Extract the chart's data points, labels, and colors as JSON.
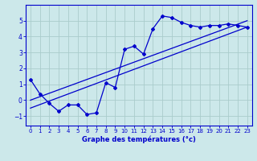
{
  "xlabel": "Graphe des températures (°c)",
  "bg_color": "#cce8ea",
  "grid_color": "#aacccc",
  "line_color": "#0000cc",
  "xlim": [
    -0.5,
    23.5
  ],
  "ylim": [
    -1.6,
    6.0
  ],
  "yticks": [
    -1,
    0,
    1,
    2,
    3,
    4,
    5
  ],
  "xticks": [
    0,
    1,
    2,
    3,
    4,
    5,
    6,
    7,
    8,
    9,
    10,
    11,
    12,
    13,
    14,
    15,
    16,
    17,
    18,
    19,
    20,
    21,
    22,
    23
  ],
  "curve1_x": [
    0,
    1,
    2,
    3,
    4,
    5,
    6,
    7,
    8,
    9,
    10,
    11,
    12,
    13,
    14,
    15,
    16,
    17,
    18,
    19,
    20,
    21,
    22,
    23
  ],
  "curve1_y": [
    1.3,
    0.4,
    -0.2,
    -0.7,
    -0.3,
    -0.3,
    -0.9,
    -0.8,
    1.1,
    0.8,
    3.2,
    3.4,
    2.9,
    4.5,
    5.3,
    5.2,
    4.9,
    4.7,
    4.6,
    4.7,
    4.7,
    4.8,
    4.7,
    4.6
  ],
  "line2_x": [
    0,
    23
  ],
  "line2_y": [
    -0.5,
    4.6
  ],
  "line3_x": [
    0,
    23
  ],
  "line3_y": [
    0.0,
    5.0
  ]
}
